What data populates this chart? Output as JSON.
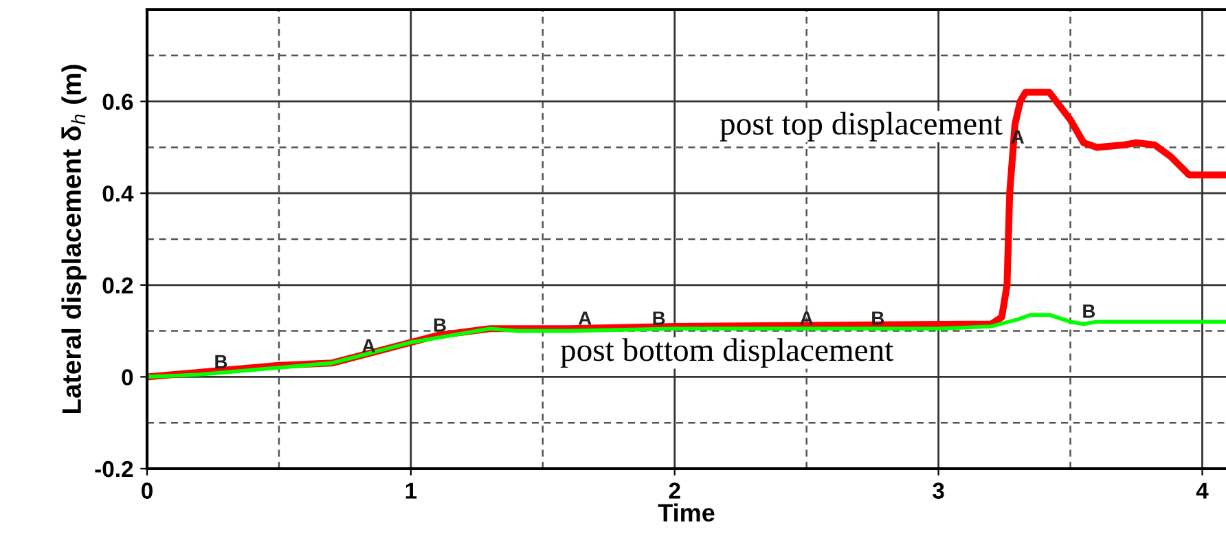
{
  "chart_data": {
    "type": "line",
    "xlabel": "Time",
    "ylabel": "Lateral displacement δ$_{h}$ (m)",
    "xlim": [
      0,
      4.09
    ],
    "ylim": [
      -0.2,
      0.8
    ],
    "xticks": [
      0,
      1,
      2,
      3,
      4
    ],
    "yticks": [
      -0.2,
      0,
      0.2,
      0.4,
      0.6
    ],
    "grid": true,
    "line_style": "solid",
    "marker": "none",
    "series": [
      {
        "name": "post top displacement",
        "color": "#ff0000",
        "x": [
          0,
          0.5,
          0.7,
          0.9,
          1.1,
          1.3,
          1.6,
          2.0,
          3.2,
          3.24,
          3.26,
          3.27,
          3.29,
          3.31,
          3.33,
          3.42,
          3.5,
          3.55,
          3.6,
          3.7,
          3.75,
          3.82,
          3.88,
          3.95,
          4.09
        ],
        "values": [
          0,
          0.025,
          0.03,
          0.06,
          0.09,
          0.105,
          0.105,
          0.11,
          0.115,
          0.13,
          0.2,
          0.4,
          0.55,
          0.6,
          0.62,
          0.62,
          0.56,
          0.51,
          0.5,
          0.505,
          0.51,
          0.505,
          0.48,
          0.44,
          0.44
        ]
      },
      {
        "name": "post bottom displacement",
        "color": "#00ff00",
        "x": [
          0,
          0.2,
          0.5,
          0.7,
          0.9,
          1.0,
          1.2,
          1.3,
          1.4,
          1.6,
          2.0,
          3.0,
          3.2,
          3.3,
          3.35,
          3.42,
          3.5,
          3.55,
          3.6,
          4.09
        ],
        "values": [
          0,
          0.005,
          0.02,
          0.03,
          0.06,
          0.075,
          0.095,
          0.105,
          0.1,
          0.1,
          0.105,
          0.105,
          0.11,
          0.125,
          0.135,
          0.135,
          0.12,
          0.115,
          0.12,
          0.12
        ]
      }
    ],
    "annotations": [
      {
        "text": "B",
        "x": 0.28,
        "y": 0.01
      },
      {
        "text": "A",
        "x": 0.84,
        "y": 0.045
      },
      {
        "text": "B",
        "x": 1.11,
        "y": 0.09
      },
      {
        "text": "A",
        "x": 1.66,
        "y": 0.105
      },
      {
        "text": "B",
        "x": 1.94,
        "y": 0.105
      },
      {
        "text": "A",
        "x": 2.5,
        "y": 0.105
      },
      {
        "text": "B",
        "x": 2.77,
        "y": 0.105
      },
      {
        "text": "A",
        "x": 3.3,
        "y": 0.5
      },
      {
        "text": "B",
        "x": 3.57,
        "y": 0.12
      }
    ]
  }
}
